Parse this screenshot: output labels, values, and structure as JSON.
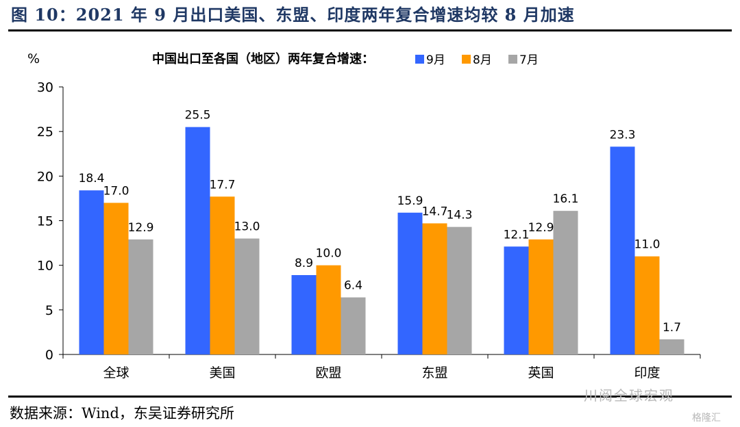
{
  "figure_title": "图 10：2021 年 9 月出口美国、东盟、印度两年复合增速均较 8 月加速",
  "source": "数据来源：Wind，东吴证券研究所",
  "watermark": "川阅全球宏观",
  "watermark2": "格隆汇",
  "colors": {
    "title": "#1f3864",
    "s9": "#3366ff",
    "s8": "#ff9900",
    "s7": "#a6a6a6"
  },
  "chart_data": {
    "type": "bar",
    "title": "中国出口至各国（地区）两年复合增速：",
    "ylabel": "%",
    "ylim": [
      0,
      30
    ],
    "yticks": [
      0,
      5,
      10,
      15,
      20,
      25,
      30
    ],
    "categories": [
      "全球",
      "美国",
      "欧盟",
      "东盟",
      "英国",
      "印度"
    ],
    "series": [
      {
        "name": "9月",
        "color": "#3366ff",
        "values": [
          18.4,
          25.5,
          8.9,
          15.9,
          12.1,
          23.3
        ]
      },
      {
        "name": "8月",
        "color": "#ff9900",
        "values": [
          17.0,
          17.7,
          10.0,
          14.7,
          12.9,
          11.0
        ]
      },
      {
        "name": "7月",
        "color": "#a6a6a6",
        "values": [
          12.9,
          13.0,
          6.4,
          14.3,
          16.1,
          1.7
        ]
      }
    ],
    "legend": "top"
  }
}
